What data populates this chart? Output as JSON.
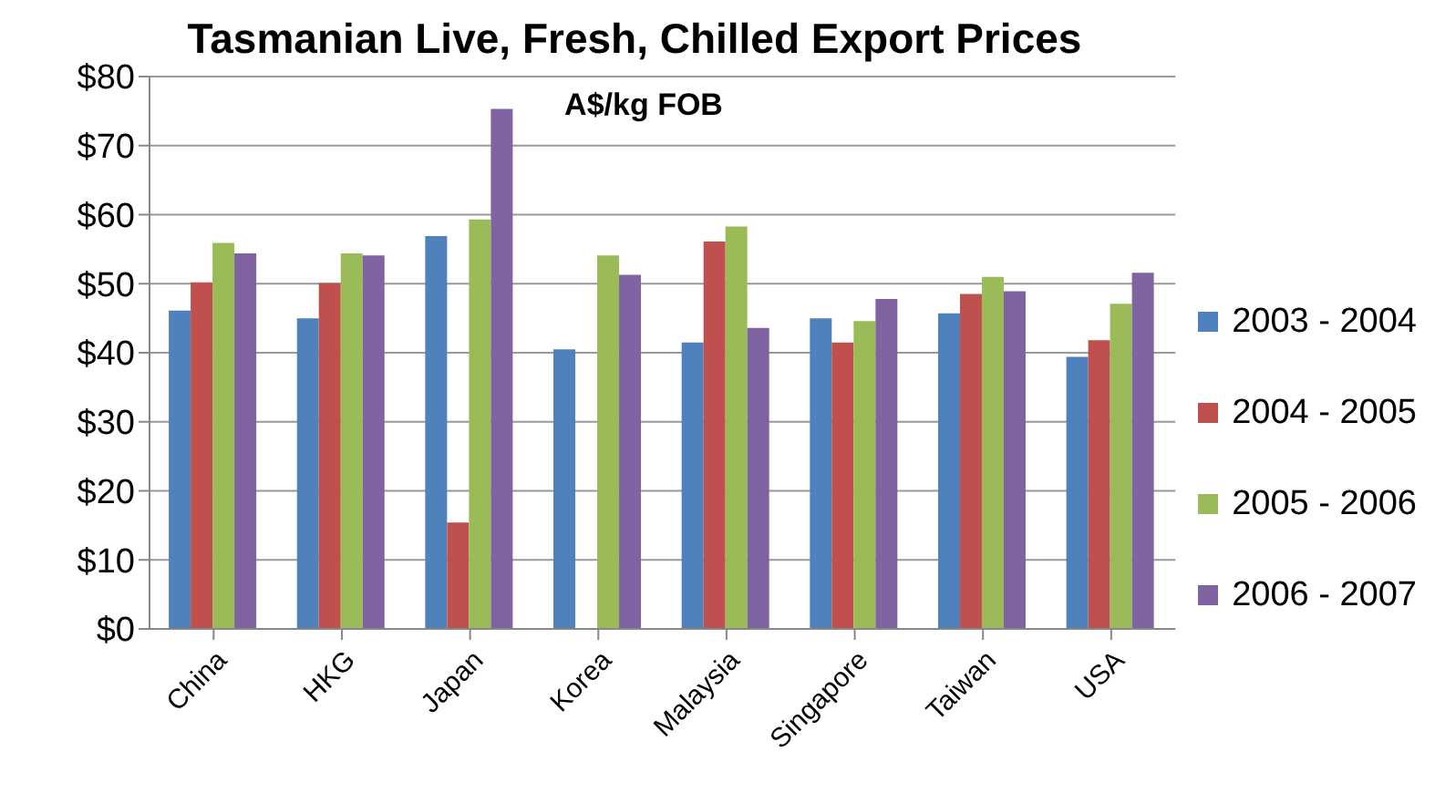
{
  "chart_data": {
    "type": "bar",
    "title": "Tasmanian Live, Fresh, Chilled Export Prices",
    "subtitle": "A$/kg FOB",
    "categories": [
      "China",
      "HKG",
      "Japan",
      "Korea",
      "Malaysia",
      "Singapore",
      "Taiwan",
      "USA"
    ],
    "series": [
      {
        "name": "2003 - 2004",
        "color": "#4f81bd",
        "values": [
          46.1,
          45.0,
          56.9,
          40.5,
          41.5,
          45.0,
          45.7,
          39.4
        ]
      },
      {
        "name": "2004 - 2005",
        "color": "#c0504d",
        "values": [
          50.2,
          50.1,
          15.4,
          null,
          56.1,
          41.5,
          48.5,
          41.8
        ]
      },
      {
        "name": "2005 - 2006",
        "color": "#9bbb59",
        "values": [
          55.9,
          54.4,
          59.3,
          54.1,
          58.3,
          44.6,
          51.0,
          47.1
        ]
      },
      {
        "name": "2006 - 2007",
        "color": "#8064a2",
        "values": [
          54.4,
          54.1,
          75.3,
          51.3,
          43.6,
          47.8,
          48.9,
          51.6
        ]
      }
    ],
    "ylim": [
      0,
      80
    ],
    "yticks": [
      {
        "value": 0,
        "label": "$0"
      },
      {
        "value": 10,
        "label": "$10"
      },
      {
        "value": 20,
        "label": "$20"
      },
      {
        "value": 30,
        "label": "$30"
      },
      {
        "value": 40,
        "label": "$40"
      },
      {
        "value": 50,
        "label": "$50"
      },
      {
        "value": 60,
        "label": "$60"
      },
      {
        "value": 70,
        "label": "$70"
      },
      {
        "value": 80,
        "label": "$80"
      }
    ],
    "grid": "y",
    "legend": "right"
  }
}
